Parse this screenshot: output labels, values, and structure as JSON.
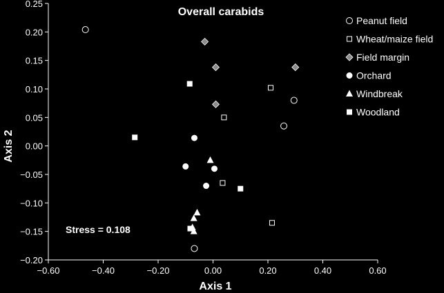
{
  "chart_data": {
    "type": "scatter",
    "title": "Overall carabids",
    "xlabel": "Axis 1",
    "ylabel": "Axis 2",
    "xlim": [
      -0.6,
      0.6
    ],
    "ylim": [
      -0.2,
      0.25
    ],
    "x_ticks": [
      "−0.60",
      "−0.40",
      "−0.20",
      "0.00",
      "0.20",
      "0.40",
      "0.60"
    ],
    "y_ticks": [
      "0.25",
      "0.20",
      "0.15",
      "0.10",
      "0.05",
      "0.00",
      "−0.05",
      "−0.10",
      "−0.15",
      "−0.20"
    ],
    "x_tick_values": [
      -0.6,
      -0.4,
      -0.2,
      0.0,
      0.2,
      0.4,
      0.6
    ],
    "y_tick_values": [
      0.25,
      0.2,
      0.15,
      0.1,
      0.05,
      0.0,
      -0.05,
      -0.1,
      -0.15,
      -0.2
    ],
    "grid": false,
    "legend_position": "top-right",
    "annotation": "Stress = 0.108",
    "series": [
      {
        "name": "Peanut field",
        "marker": "circle-open",
        "points": [
          [
            -0.465,
            0.204
          ],
          [
            0.295,
            0.08
          ],
          [
            0.258,
            0.035
          ],
          [
            -0.068,
            -0.18
          ]
        ]
      },
      {
        "name": "Wheat/maize field",
        "marker": "square-open",
        "points": [
          [
            0.21,
            0.102
          ],
          [
            0.04,
            0.05
          ],
          [
            0.035,
            -0.065
          ],
          [
            0.215,
            -0.135
          ]
        ]
      },
      {
        "name": "Field margin",
        "marker": "diamond",
        "points": [
          [
            -0.03,
            0.183
          ],
          [
            0.01,
            0.138
          ],
          [
            0.3,
            0.138
          ],
          [
            0.01,
            0.073
          ]
        ]
      },
      {
        "name": "Orchard",
        "marker": "circle-filled",
        "points": [
          [
            -0.068,
            0.014
          ],
          [
            -0.1,
            -0.036
          ],
          [
            0.005,
            -0.04
          ],
          [
            -0.025,
            -0.07
          ]
        ]
      },
      {
        "name": "Windbreak",
        "marker": "triangle",
        "points": [
          [
            -0.01,
            -0.025
          ],
          [
            -0.058,
            -0.117
          ],
          [
            -0.07,
            -0.127
          ],
          [
            -0.075,
            -0.143
          ],
          [
            -0.07,
            -0.15
          ]
        ]
      },
      {
        "name": "Woodland",
        "marker": "square-filled",
        "points": [
          [
            -0.085,
            0.109
          ],
          [
            -0.285,
            0.015
          ],
          [
            0.1,
            -0.075
          ],
          [
            -0.083,
            -0.145
          ]
        ]
      }
    ]
  },
  "colors": {
    "background": "#000000",
    "axis": "#ffffff",
    "diamond_fill": "#8c8c8c"
  }
}
